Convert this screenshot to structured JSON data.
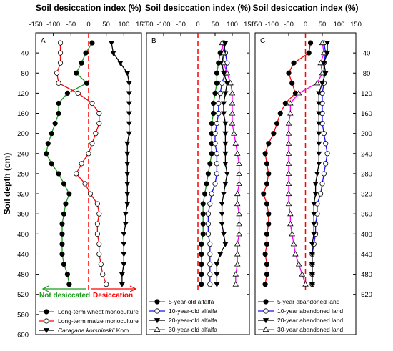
{
  "chart_data": {
    "type": "line",
    "ylabel": "Soil depth (cm)",
    "ylim": [
      0,
      600
    ],
    "y_ticks_left": [
      40,
      80,
      120,
      160,
      200,
      240,
      280,
      320,
      360,
      400,
      440,
      480,
      520,
      560,
      600
    ],
    "y_ticks_right": [
      40,
      80,
      120,
      160,
      200,
      240,
      280,
      320,
      360,
      400,
      440,
      480,
      520
    ],
    "x_ticks": [
      "-150",
      "-100",
      "-50",
      "0",
      "50",
      "100",
      "150"
    ],
    "xlim": [
      -150,
      150
    ],
    "colors": {
      "black": "#000000",
      "red": "#ff0000",
      "green": "#1a9a1a",
      "blue": "#1414ff",
      "magenta": "#ff00ff",
      "zero_line": "#ff0000"
    },
    "depths": [
      20,
      40,
      60,
      80,
      100,
      120,
      140,
      160,
      180,
      200,
      220,
      240,
      260,
      280,
      300,
      320,
      340,
      360,
      380,
      400,
      420,
      440,
      460,
      480,
      500
    ],
    "panels": [
      {
        "letter": "A",
        "title": "Soil desiccation index (%)",
        "series": [
          {
            "name": "Long-term wheat monoculture",
            "color": "#1a9a1a",
            "marker": "filled-circle",
            "x": [
              10,
              -8,
              -20,
              -35,
              -5,
              -60,
              -85,
              -85,
              -95,
              -105,
              -115,
              -120,
              -105,
              -85,
              -70,
              -55,
              -65,
              -70,
              -75,
              -75,
              -75,
              -75,
              -70,
              -60,
              -55
            ],
            "y": [
              20,
              40,
              60,
              80,
              100,
              120,
              140,
              160,
              180,
              200,
              220,
              240,
              260,
              280,
              300,
              320,
              340,
              360,
              380,
              400,
              420,
              440,
              460,
              480,
              500
            ]
          },
          {
            "name": "Long-term maize monoculture",
            "color": "#ff0000",
            "marker": "open-circle",
            "x": [
              -80,
              -80,
              -80,
              -90,
              -85,
              -30,
              10,
              30,
              30,
              20,
              10,
              0,
              -20,
              -35,
              -10,
              5,
              25,
              30,
              25,
              25,
              30,
              30,
              35,
              40,
              50
            ],
            "y": [
              20,
              40,
              60,
              80,
              100,
              120,
              140,
              160,
              180,
              200,
              220,
              240,
              260,
              280,
              300,
              320,
              340,
              360,
              380,
              400,
              420,
              440,
              460,
              480,
              500
            ]
          },
          {
            "name": "Kom.",
            "label_italic": "Caragana korshinskii",
            "color": "#000000",
            "marker": "filled-triangle-down",
            "x": [
              65,
              70,
              90,
              110,
              115,
              115,
              115,
              115,
              115,
              115,
              110,
              110,
              110,
              110,
              110,
              110,
              110,
              105,
              105,
              100,
              100,
              100,
              100,
              95,
              95
            ],
            "y": [
              20,
              40,
              60,
              80,
              100,
              120,
              140,
              160,
              180,
              200,
              220,
              240,
              260,
              280,
              300,
              320,
              340,
              360,
              380,
              400,
              420,
              440,
              460,
              480,
              500
            ]
          }
        ],
        "annotations": {
          "left_arrow": "Not desiccated",
          "right_arrow": "Desiccation"
        }
      },
      {
        "letter": "B",
        "title": "Soil desiccation index (%)",
        "series": [
          {
            "name": "5-year-old alfalfa",
            "color": "#1a9a1a",
            "marker": "filled-circle",
            "x": [
              75,
              65,
              60,
              55,
              55,
              50,
              45,
              45,
              40,
              40,
              40,
              40,
              35,
              30,
              25,
              20,
              15,
              15,
              15,
              15,
              10,
              10,
              10,
              10,
              10
            ],
            "y": [
              20,
              40,
              60,
              80,
              100,
              120,
              140,
              160,
              180,
              200,
              220,
              240,
              260,
              280,
              300,
              320,
              340,
              360,
              380,
              400,
              420,
              440,
              460,
              480,
              500
            ]
          },
          {
            "name": "10-year-old alfalfa",
            "color": "#1414ff",
            "marker": "open-circle",
            "x": [
              75,
              80,
              85,
              80,
              70,
              65,
              60,
              60,
              55,
              50,
              50,
              55,
              55,
              55,
              50,
              40,
              35,
              30,
              30,
              30,
              35,
              35,
              35,
              35,
              35
            ],
            "y": [
              20,
              40,
              60,
              80,
              100,
              120,
              140,
              160,
              180,
              200,
              220,
              240,
              260,
              280,
              300,
              320,
              340,
              360,
              380,
              400,
              420,
              440,
              460,
              480,
              500
            ]
          },
          {
            "name": "20-year-old alfalfa",
            "color": "#000000",
            "marker": "filled-triangle-down",
            "x": [
              80,
              75,
              70,
              75,
              85,
              80,
              75,
              75,
              80,
              80,
              80,
              80,
              80,
              85,
              80,
              75,
              70,
              70,
              70,
              75,
              80,
              65,
              55,
              55,
              55
            ],
            "y": [
              20,
              40,
              60,
              80,
              100,
              120,
              140,
              160,
              180,
              200,
              220,
              240,
              260,
              280,
              300,
              320,
              340,
              360,
              380,
              400,
              420,
              440,
              460,
              480,
              500
            ]
          },
          {
            "name": "30-year-old alfalfa",
            "color": "#ff00ff",
            "marker": "open-triangle-up",
            "x": [
              70,
              75,
              75,
              85,
              95,
              100,
              100,
              100,
              100,
              105,
              110,
              115,
              120,
              120,
              120,
              115,
              115,
              120,
              120,
              120,
              115,
              115,
              115,
              110,
              110
            ],
            "y": [
              20,
              40,
              60,
              80,
              100,
              120,
              140,
              160,
              180,
              200,
              220,
              240,
              260,
              280,
              300,
              320,
              340,
              360,
              380,
              400,
              420,
              440,
              460,
              480,
              500
            ]
          }
        ]
      },
      {
        "letter": "C",
        "title": "Soil desiccation index (%)",
        "series": [
          {
            "name": "5-year abandoned land",
            "color": "#ff0000",
            "marker": "filled-circle",
            "x": [
              15,
              10,
              -35,
              -50,
              -40,
              -30,
              -60,
              -75,
              -85,
              -95,
              -110,
              -120,
              -115,
              -110,
              -115,
              -125,
              -115,
              -110,
              -110,
              -115,
              -115,
              -120,
              -115,
              -115,
              -120
            ],
            "y": [
              20,
              40,
              60,
              80,
              100,
              120,
              140,
              160,
              180,
              200,
              220,
              240,
              260,
              280,
              300,
              320,
              340,
              360,
              380,
              400,
              420,
              440,
              460,
              480,
              500
            ]
          },
          {
            "name": "10-year abandoned land",
            "color": "#1414ff",
            "marker": "open-circle",
            "x": [
              55,
              60,
              55,
              55,
              55,
              50,
              50,
              50,
              50,
              55,
              60,
              65,
              60,
              55,
              50,
              45,
              35,
              35,
              30,
              30,
              25,
              20,
              20,
              20,
              20
            ],
            "y": [
              20,
              40,
              60,
              80,
              100,
              120,
              140,
              160,
              180,
              200,
              220,
              240,
              260,
              280,
              300,
              320,
              340,
              360,
              380,
              400,
              420,
              440,
              460,
              480,
              500
            ]
          },
          {
            "name": "20-year abandoned land",
            "color": "#000000",
            "marker": "filled-triangle-down",
            "x": [
              65,
              65,
              55,
              60,
              50,
              40,
              40,
              40,
              40,
              40,
              40,
              40,
              40,
              35,
              30,
              30,
              25,
              25,
              25,
              25,
              20,
              20,
              20,
              20,
              20
            ],
            "y": [
              20,
              40,
              60,
              80,
              100,
              120,
              140,
              160,
              180,
              200,
              220,
              240,
              260,
              280,
              300,
              320,
              340,
              360,
              380,
              400,
              420,
              440,
              460,
              480,
              500
            ]
          },
          {
            "name": "30-year abandoned land",
            "color": "#ff00ff",
            "marker": "open-triangle-up",
            "x": [
              50,
              55,
              45,
              50,
              35,
              -20,
              -45,
              -45,
              -50,
              -50,
              -50,
              -50,
              -50,
              -50,
              -50,
              -50,
              -50,
              -45,
              -45,
              -40,
              -35,
              -30,
              -20,
              -10,
              0
            ],
            "y": [
              20,
              40,
              60,
              80,
              100,
              120,
              140,
              160,
              180,
              200,
              220,
              240,
              260,
              280,
              300,
              320,
              340,
              360,
              380,
              400,
              420,
              440,
              460,
              480,
              500
            ]
          }
        ]
      }
    ]
  }
}
